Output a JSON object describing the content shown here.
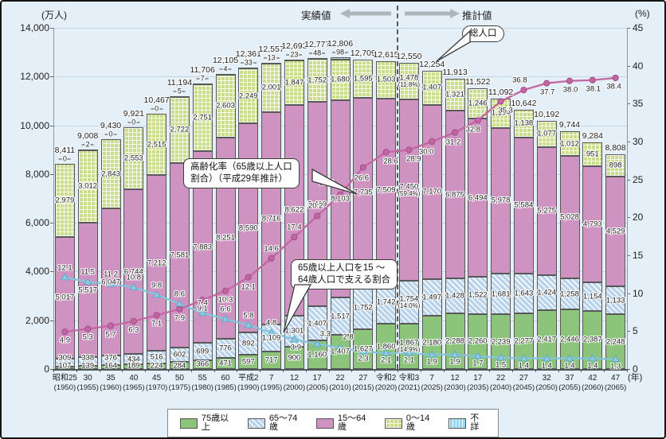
{
  "chart_data": {
    "type": "stacked-bar-with-lines",
    "axes": {
      "left_unit": "(万人)",
      "left_axis": {
        "min": 0,
        "max": 14000,
        "step": 2000
      },
      "right_unit": "(%)",
      "right_axis": {
        "min": 0,
        "max": 45,
        "step": 5
      },
      "x_unit": "(年)"
    },
    "header": {
      "actual": "実績値",
      "projection": "推計値"
    },
    "annotations": {
      "total_note": "総人口",
      "aging_note": [
        "高齢化率（65歳以上人口",
        "割合）（平成29年推計）"
      ],
      "support_note": [
        "65歳以上人口を15 ～",
        "64歳人口で支える割合"
      ]
    },
    "legend": [
      {
        "key": "g75",
        "label": "75歳以上",
        "color": "#8cc47c"
      },
      {
        "key": "h65",
        "label": "65～74歳",
        "color": "#b9d3ed"
      },
      {
        "key": "p15",
        "label": "15～64歳",
        "color": "#cf93c1"
      },
      {
        "key": "g0",
        "label": "0～14歳",
        "color": "#cbdc8b"
      },
      {
        "key": "unknown",
        "label": "不詳",
        "color": "#93d4f0"
      }
    ],
    "line_series": [
      {
        "name": "高齢化率(65歳以上人口割合)",
        "color": "#c465a4",
        "marker": "circle"
      },
      {
        "name": "65歳以上人口を15～64歳人口で支える割合",
        "color": "#82c5dd",
        "marker": "triangle"
      }
    ],
    "years": [
      {
        "era": "昭和25",
        "west": "(1950)",
        "total": 8411,
        "unk": 0,
        "v75": 107,
        "v65": 309,
        "v15": 5017,
        "v0": 2979,
        "aging": "4.9",
        "support": "12.1"
      },
      {
        "era": "30",
        "west": "(1955)",
        "total": 9008,
        "unk": 2,
        "v75": 139,
        "v65": 338,
        "v15": 5517,
        "v0": 3012,
        "aging": "5.3",
        "support": "11.5"
      },
      {
        "era": "35",
        "west": "(1960)",
        "total": 9430,
        "unk": 0,
        "v75": 164,
        "v65": 376,
        "v15": 6047,
        "v0": 2843,
        "aging": "5.7",
        "support": "11.2"
      },
      {
        "era": "40",
        "west": "(1965)",
        "total": 9921,
        "unk": 0,
        "v75": 189,
        "v65": 434,
        "v15": 6744,
        "v0": 2553,
        "aging": "6.3",
        "support": "10.8"
      },
      {
        "era": "45",
        "west": "(1970)",
        "total": 10467,
        "unk": 0,
        "v75": 224,
        "v65": 516,
        "v15": 7212,
        "v0": 2515,
        "aging": "7.1",
        "support": "9.8"
      },
      {
        "era": "50",
        "west": "(1975)",
        "total": 11194,
        "unk": 5,
        "v75": 284,
        "v65": 602,
        "v15": 7581,
        "v0": 2722,
        "aging": "7.9",
        "support": "8.6"
      },
      {
        "era": "55",
        "west": "(1980)",
        "total": 11706,
        "unk": 7,
        "v75": 366,
        "v65": 699,
        "v15": 7883,
        "v0": 2751,
        "aging": "9.1",
        "support": "7.4"
      },
      {
        "era": "60",
        "west": "(1985)",
        "total": 12105,
        "unk": 4,
        "v75": 471,
        "v65": 776,
        "v15": 8251,
        "v0": 2603,
        "aging": "10.3",
        "support": "6.6"
      },
      {
        "era": "平成2",
        "west": "(1990)",
        "total": 12361,
        "unk": 33,
        "v75": 597,
        "v65": 892,
        "v15": 8590,
        "v0": 2249,
        "aging": "12.1",
        "support": "5.8"
      },
      {
        "era": "7",
        "west": "(1995)",
        "total": 12557,
        "unk": 13,
        "v75": 717,
        "v65": 1109,
        "v15": 8716,
        "v0": 2001,
        "aging": "14.6",
        "support": "4.8"
      },
      {
        "era": "12",
        "west": "(2000)",
        "total": 12693,
        "unk": 23,
        "v75": 900,
        "v65": 1301,
        "v15": 8622,
        "v0": 1847,
        "aging": "17.4",
        "support": "3.9"
      },
      {
        "era": "17",
        "west": "(2005)",
        "total": 12777,
        "unk": 48,
        "v75": 1160,
        "v65": 1407,
        "v15": 8409,
        "v0": 1752,
        "aging": "20.2",
        "support": "3.3"
      },
      {
        "era": "22",
        "west": "(2010)",
        "total": 12806,
        "unk": 98,
        "v75": 1407,
        "v65": 1517,
        "v15": 8103,
        "v0": 1680,
        "aging": "23.0",
        "support": "2.8"
      },
      {
        "era": "27",
        "west": "(2015)",
        "total": 12709,
        "unk": null,
        "v75": 1627,
        "v65": 1752,
        "v15": 7735,
        "v0": 1595,
        "aging": "26.6",
        "support": "2.3"
      },
      {
        "era": "令和2",
        "west": "(2020)",
        "total": 12615,
        "unk": null,
        "v75": 1860,
        "v65": 1742,
        "v15": 7509,
        "v0": 1503,
        "aging": "28.6",
        "support": "2.1"
      },
      {
        "era": "令和3",
        "west": "(2021)",
        "total": 12550,
        "unk": null,
        "v75": 1867,
        "v65": 1754,
        "v15": 7450,
        "v0": 1478,
        "aging": "28.9",
        "support": "2.1",
        "pct75": "(14.9%)",
        "pct65": "(14.0%)",
        "pct15": "(59.4%)",
        "pct0": "(11.8%)"
      },
      {
        "era": "7",
        "west": "(2025)",
        "total": 12254,
        "unk": null,
        "v75": 2180,
        "v65": 1497,
        "v15": 7170,
        "v0": 1407,
        "aging": "30.0",
        "support": "1.9"
      },
      {
        "era": "12",
        "west": "(2030)",
        "total": 11913,
        "unk": null,
        "v75": 2288,
        "v65": 1428,
        "v15": 6875,
        "v0": 1321,
        "aging": "31.2",
        "support": "1.9"
      },
      {
        "era": "17",
        "west": "(2035)",
        "total": 11522,
        "unk": null,
        "v75": 2260,
        "v65": 1522,
        "v15": 6494,
        "v0": 1246,
        "aging": "32.8",
        "support": "1.7"
      },
      {
        "era": "22",
        "west": "(2040)",
        "total": 11092,
        "unk": null,
        "v75": 2239,
        "v65": 1681,
        "v15": 5978,
        "v0": 1194,
        "aging": "35.3",
        "support": "1.5"
      },
      {
        "era": "27",
        "west": "(2045)",
        "total": 10642,
        "unk": null,
        "v75": 2277,
        "v65": 1643,
        "v15": 5584,
        "v0": 1138,
        "aging": "36.8",
        "support": "1.4"
      },
      {
        "era": "32",
        "west": "(2050)",
        "total": 10192,
        "unk": null,
        "v75": 2417,
        "v65": 1424,
        "v15": 5275,
        "v0": 1077,
        "aging": "37.7",
        "support": "1.4"
      },
      {
        "era": "37",
        "west": "(2055)",
        "total": 9744,
        "unk": null,
        "v75": 2446,
        "v65": 1258,
        "v15": 5028,
        "v0": 1012,
        "aging": "38.0",
        "support": "1.4"
      },
      {
        "era": "42",
        "west": "(2060)",
        "total": 9284,
        "unk": null,
        "v75": 2387,
        "v65": 1154,
        "v15": 4793,
        "v0": 951,
        "aging": "38.1",
        "support": "1.4"
      },
      {
        "era": "47",
        "west": "(2065)",
        "total": 8808,
        "unk": null,
        "v75": 2248,
        "v65": 1133,
        "v15": 4529,
        "v0": 898,
        "aging": "38.4",
        "support": "1.3"
      }
    ]
  }
}
